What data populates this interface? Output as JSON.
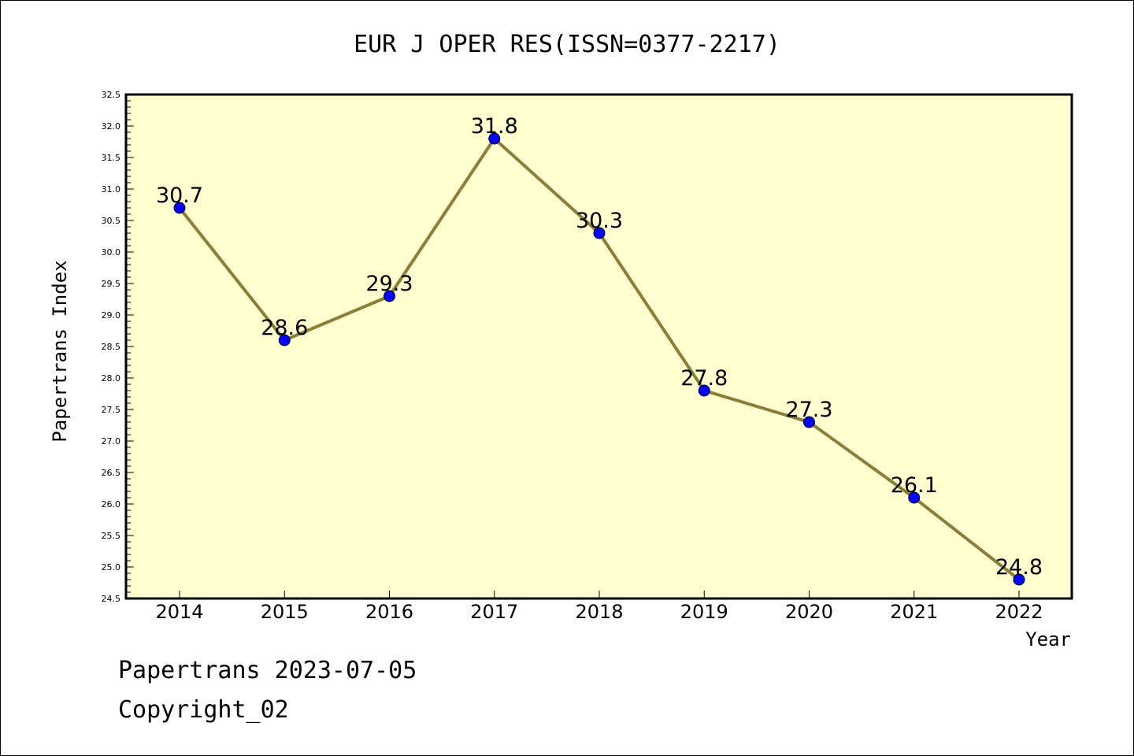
{
  "chart_data": {
    "type": "line",
    "title": "EUR J OPER RES(ISSN=0377-2217)",
    "xlabel": "Year",
    "ylabel": "Papertrans Index",
    "x": [
      "2014",
      "2015",
      "2016",
      "2017",
      "2018",
      "2019",
      "2020",
      "2021",
      "2022"
    ],
    "values": [
      30.7,
      28.6,
      29.3,
      31.8,
      30.3,
      27.8,
      27.3,
      26.1,
      24.8
    ],
    "data_labels": [
      "30.7",
      "28.6",
      "29.3",
      "31.8",
      "30.3",
      "27.8",
      "27.3",
      "26.1",
      "24.8"
    ],
    "ylim": [
      24.5,
      32.5
    ],
    "yticks": [
      "24.5",
      "25.0",
      "25.5",
      "26.0",
      "26.5",
      "27.0",
      "27.5",
      "28.0",
      "28.5",
      "29.0",
      "29.5",
      "30.0",
      "30.5",
      "31.0",
      "31.5",
      "32.0",
      "32.5"
    ],
    "grid": false,
    "colors": {
      "plot_background": "#ffffd0",
      "line": "#8b7d3a",
      "marker": "#0000ff"
    }
  },
  "footer": {
    "line1": "Papertrans 2023-07-05",
    "line2": "Copyright_02"
  }
}
